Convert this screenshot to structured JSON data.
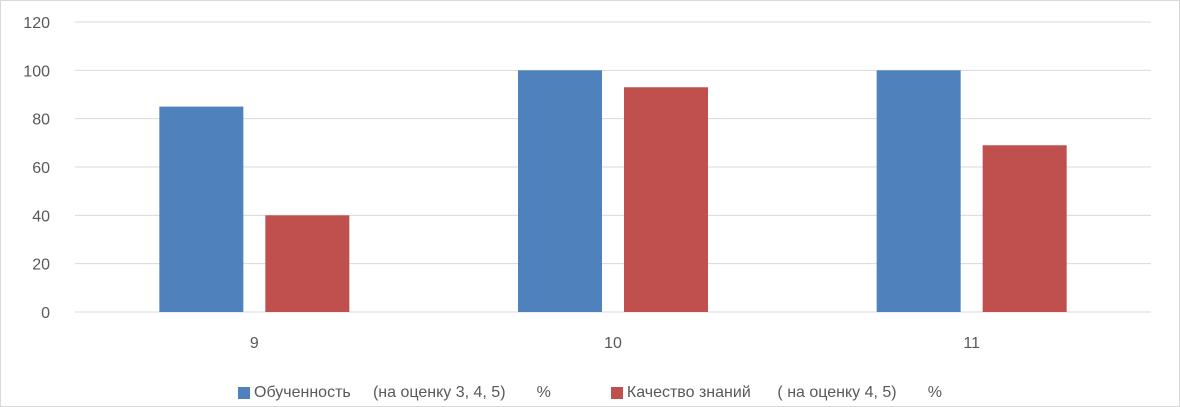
{
  "chart_data": {
    "type": "bar",
    "title": "",
    "xlabel": "",
    "ylabel": "",
    "categories": [
      "9",
      "10",
      "11"
    ],
    "ylim": [
      0,
      120
    ],
    "yticks": [
      "0",
      "20",
      "40",
      "60",
      "80",
      "100",
      "120"
    ],
    "grid": true,
    "legend_position": "bottom",
    "series": [
      {
        "name": "Обученность     (на оценку 3, 4, 5)       %",
        "values": [
          85,
          100,
          100
        ],
        "color": "#4f81bd"
      },
      {
        "name": "Качество знаний      ( на оценку 4, 5)       %",
        "values": [
          40,
          93,
          69
        ],
        "color": "#c0504d"
      }
    ]
  }
}
